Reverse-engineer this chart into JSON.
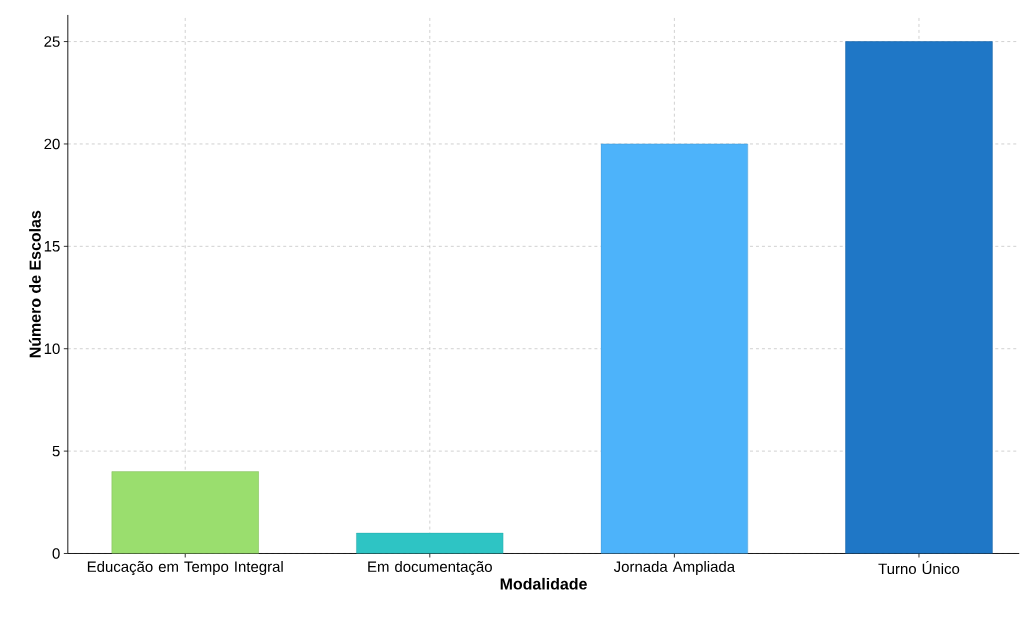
{
  "chart_data": {
    "type": "bar",
    "xlabel": "Modalidade",
    "ylabel": "Número de Escolas",
    "categories": [
      "Educação em Tempo Integral",
      "Em documentação",
      "Jornada Ampliada",
      "Turno Único"
    ],
    "values": [
      4,
      1,
      20,
      25
    ],
    "colors": [
      "#9ade6e",
      "#2ec4c4",
      "#4db3fa",
      "#1f77c6"
    ],
    "ylim": [
      0,
      26.3
    ],
    "yticks": [
      0,
      5,
      10,
      15,
      20,
      25
    ],
    "grid": true
  }
}
